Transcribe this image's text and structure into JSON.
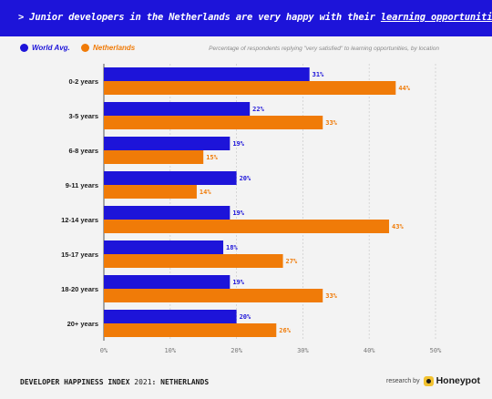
{
  "header": {
    "prefix": "> Junior developers in the Netherlands are very happy with their ",
    "highlight": "learning opportunities",
    "suffix": "."
  },
  "colors": {
    "world": "#1d14d9",
    "netherlands": "#f07b08",
    "banner": "#1d14d9"
  },
  "legend": {
    "world": "World Avg.",
    "netherlands": "Netherlands"
  },
  "chart_subtitle": "Percentage of respondents replying \"very satisfied\" to learning opportunities, by location",
  "chart_data": {
    "type": "bar",
    "orientation": "horizontal",
    "categories": [
      "0-2 years",
      "3-5 years",
      "6-8 years",
      "9-11 years",
      "12-14 years",
      "15-17 years",
      "18-20 years",
      "20+ years"
    ],
    "series": [
      {
        "name": "World Avg.",
        "values": [
          31,
          22,
          19,
          20,
          19,
          18,
          19,
          20
        ],
        "color": "#1d14d9"
      },
      {
        "name": "Netherlands",
        "values": [
          44,
          33,
          15,
          14,
          43,
          27,
          33,
          26
        ],
        "color": "#f07b08"
      }
    ],
    "xlim": [
      0,
      50
    ],
    "xticks": [
      "0%",
      "10%",
      "20%",
      "30%",
      "40%",
      "50%"
    ],
    "grid": true,
    "value_suffix": "%",
    "legend_position": "top-left"
  },
  "footer": {
    "index_label": "DEVELOPER HAPPINESS INDEX",
    "year": "2021",
    "country": ": NETHERLANDS",
    "research_by": "research by",
    "brand": "Honeypot"
  }
}
